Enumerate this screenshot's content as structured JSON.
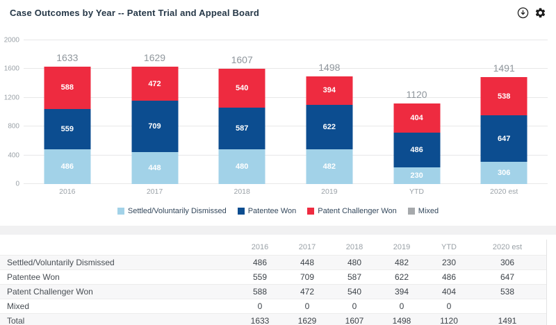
{
  "header": {
    "title": "Case Outcomes by Year -- Patent Trial and Appeal Board",
    "icons": [
      {
        "name": "download-icon"
      },
      {
        "name": "settings-gear-icon"
      }
    ]
  },
  "colors": {
    "settled": "#a2d2e8",
    "patentee_won": "#0c4d90",
    "challenger_won": "#ee2b40",
    "mixed": "#a6a9ac",
    "gridline": "#e7e7e8",
    "total_label": "#8f969c",
    "band": "#f1f1f2"
  },
  "chart_data": {
    "type": "bar",
    "stacked": true,
    "title": "Case Outcomes by Year -- Patent Trial and Appeal Board",
    "categories": [
      "2016",
      "2017",
      "2018",
      "2019",
      "YTD",
      "2020 est"
    ],
    "series": [
      {
        "name": "Settled/Voluntarily Dismissed",
        "color": "#a2d2e8",
        "values": [
          486,
          448,
          480,
          482,
          230,
          306
        ]
      },
      {
        "name": "Patentee Won",
        "color": "#0c4d90",
        "values": [
          559,
          709,
          587,
          622,
          486,
          647
        ]
      },
      {
        "name": "Patent Challenger Won",
        "color": "#ee2b40",
        "values": [
          588,
          472,
          540,
          394,
          404,
          538
        ]
      },
      {
        "name": "Mixed",
        "color": "#a6a9ac",
        "values": [
          0,
          0,
          0,
          0,
          0,
          null
        ]
      }
    ],
    "totals": [
      1633,
      1629,
      1607,
      1498,
      1120,
      1491
    ],
    "xlabel": "",
    "ylabel": "",
    "ylim": [
      0,
      2000
    ],
    "y_ticks": [
      0,
      400,
      800,
      1200,
      1600,
      2000
    ],
    "grid": true,
    "legend_position": "bottom"
  },
  "table": {
    "columns": [
      "",
      "2016",
      "2017",
      "2018",
      "2019",
      "YTD",
      "2020 est"
    ],
    "rows": [
      {
        "label": "Settled/Voluntarily Dismissed",
        "values": [
          "486",
          "448",
          "480",
          "482",
          "230",
          "306"
        ]
      },
      {
        "label": "Patentee Won",
        "values": [
          "559",
          "709",
          "587",
          "622",
          "486",
          "647"
        ]
      },
      {
        "label": "Patent Challenger Won",
        "values": [
          "588",
          "472",
          "540",
          "394",
          "404",
          "538"
        ]
      },
      {
        "label": "Mixed",
        "values": [
          "0",
          "0",
          "0",
          "0",
          "0",
          ""
        ]
      },
      {
        "label": "Total",
        "values": [
          "1633",
          "1629",
          "1607",
          "1498",
          "1120",
          "1491"
        ]
      }
    ]
  }
}
